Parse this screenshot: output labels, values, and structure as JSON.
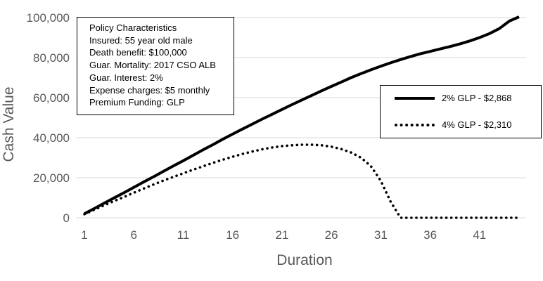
{
  "chart_data": {
    "type": "line",
    "xlabel": "Duration",
    "ylabel": "Cash Value",
    "xlim": [
      1,
      45
    ],
    "ylim": [
      0,
      100000
    ],
    "x_ticks": [
      "1",
      "6",
      "11",
      "16",
      "21",
      "26",
      "31",
      "36",
      "41"
    ],
    "y_ticks": [
      "0",
      "20,000",
      "40,000",
      "60,000",
      "80,000",
      "100,000"
    ],
    "grid": "horizontal",
    "legend_placement": "right",
    "series": [
      {
        "name": "2% GLP - $2,868",
        "style": "solid",
        "color": "#000000",
        "x": [
          1,
          2,
          3,
          4,
          5,
          6,
          7,
          8,
          9,
          10,
          11,
          12,
          13,
          14,
          15,
          16,
          17,
          18,
          19,
          20,
          21,
          22,
          23,
          24,
          25,
          26,
          27,
          28,
          29,
          30,
          31,
          32,
          33,
          34,
          35,
          36,
          37,
          38,
          39,
          40,
          41,
          42,
          43,
          44,
          45
        ],
        "values": [
          2000,
          4600,
          7300,
          9900,
          12500,
          15200,
          17900,
          20500,
          23200,
          25900,
          28500,
          31200,
          33900,
          36500,
          39200,
          41800,
          44300,
          46800,
          49300,
          51700,
          54100,
          56500,
          58800,
          61100,
          63400,
          65600,
          67800,
          70000,
          72000,
          73900,
          75700,
          77400,
          79000,
          80500,
          81900,
          83100,
          84300,
          85500,
          86800,
          88300,
          90000,
          92000,
          94500,
          98200,
          102000
        ]
      },
      {
        "name": "4% GLP - $2,310",
        "style": "dotted",
        "color": "#000000",
        "x": [
          1,
          2,
          3,
          4,
          5,
          6,
          7,
          8,
          9,
          10,
          11,
          12,
          13,
          14,
          15,
          16,
          17,
          18,
          19,
          20,
          21,
          22,
          23,
          24,
          25,
          26,
          27,
          28,
          29,
          30,
          31,
          32,
          33,
          34,
          35,
          36,
          37,
          38,
          39,
          40,
          41,
          42,
          43,
          44,
          45
        ],
        "values": [
          1800,
          4000,
          6200,
          8300,
          10400,
          12500,
          14600,
          16600,
          18600,
          20400,
          22200,
          24000,
          25700,
          27400,
          29000,
          30500,
          31900,
          33100,
          34200,
          35100,
          35800,
          36200,
          36500,
          36500,
          36200,
          35500,
          34300,
          32600,
          30000,
          25800,
          18500,
          8000,
          0,
          0,
          0,
          0,
          0,
          0,
          0,
          0,
          0,
          0,
          0,
          0,
          0
        ]
      }
    ],
    "annotation": {
      "title": "Policy Characteristics",
      "lines": [
        "Insured: 55 year old male",
        "Death benefit: $100,000",
        "Guar. Mortality: 2017 CSO ALB",
        "Guar. Interest: 2%",
        "Expense charges: $5 monthly",
        "Premium Funding: GLP"
      ]
    }
  }
}
